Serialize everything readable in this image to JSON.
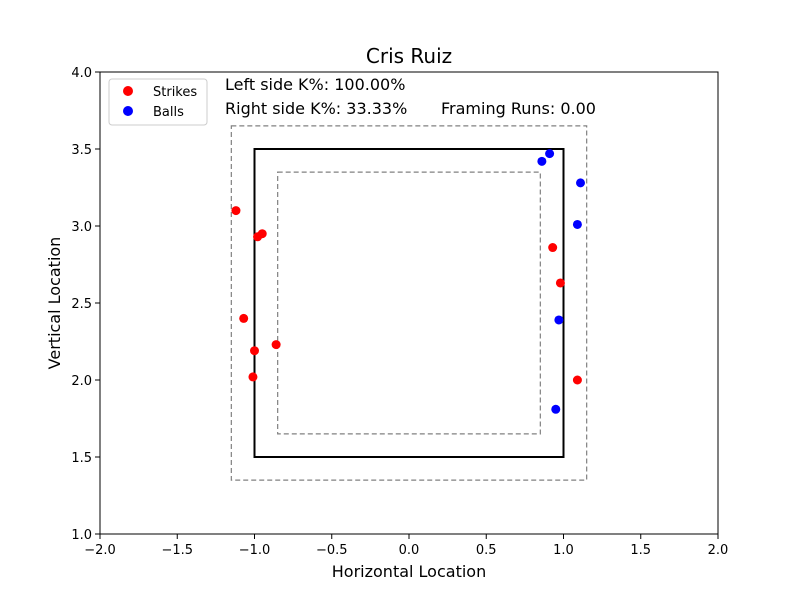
{
  "chart_data": {
    "type": "scatter",
    "title": "Cris Ruiz",
    "xlabel": "Horizontal Location",
    "ylabel": "Vertical Location",
    "xlim": [
      -2.0,
      2.0
    ],
    "ylim": [
      1.0,
      4.0
    ],
    "xticks": [
      -2.0,
      -1.5,
      -1.0,
      -0.5,
      0.0,
      0.5,
      1.0,
      1.5,
      2.0
    ],
    "yticks": [
      1.0,
      1.5,
      2.0,
      2.5,
      3.0,
      3.5,
      4.0
    ],
    "xtick_labels": [
      "−2.0",
      "−1.5",
      "−1.0",
      "−0.5",
      "0.0",
      "0.5",
      "1.0",
      "1.5",
      "2.0"
    ],
    "ytick_labels": [
      "1.0",
      "1.5",
      "2.0",
      "2.5",
      "3.0",
      "3.5",
      "4.0"
    ],
    "grid": false,
    "legend_placement": "top-left",
    "annotations": {
      "left_k": "Left side K%: 100.00%",
      "right_k": "Right side K%: 33.33%",
      "framing": "Framing Runs: 0.00"
    },
    "zones": {
      "strike_zone": {
        "x": [
          -1.0,
          1.0
        ],
        "y": [
          1.5,
          3.5
        ],
        "style": "solid",
        "color": "#000000"
      },
      "outer_zone": {
        "x": [
          -1.15,
          1.15
        ],
        "y": [
          1.35,
          3.65
        ],
        "style": "dashed",
        "color": "#808080"
      },
      "inner_zone": {
        "x": [
          -0.85,
          0.85
        ],
        "y": [
          1.65,
          3.35
        ],
        "style": "dashed",
        "color": "#808080"
      }
    },
    "series": [
      {
        "name": "Strikes",
        "color": "#ff0000",
        "points": [
          {
            "x": -1.12,
            "y": 3.1
          },
          {
            "x": -0.98,
            "y": 2.93
          },
          {
            "x": -0.95,
            "y": 2.95
          },
          {
            "x": -1.07,
            "y": 2.4
          },
          {
            "x": -1.0,
            "y": 2.19
          },
          {
            "x": -0.86,
            "y": 2.23
          },
          {
            "x": -1.01,
            "y": 2.02
          },
          {
            "x": 0.93,
            "y": 2.86
          },
          {
            "x": 0.98,
            "y": 2.63
          },
          {
            "x": 1.09,
            "y": 2.0
          }
        ]
      },
      {
        "name": "Balls",
        "color": "#0000ff",
        "points": [
          {
            "x": 0.86,
            "y": 3.42
          },
          {
            "x": 0.91,
            "y": 3.47
          },
          {
            "x": 1.11,
            "y": 3.28
          },
          {
            "x": 1.09,
            "y": 3.01
          },
          {
            "x": 0.97,
            "y": 2.39
          },
          {
            "x": 0.95,
            "y": 1.81
          }
        ]
      }
    ]
  }
}
